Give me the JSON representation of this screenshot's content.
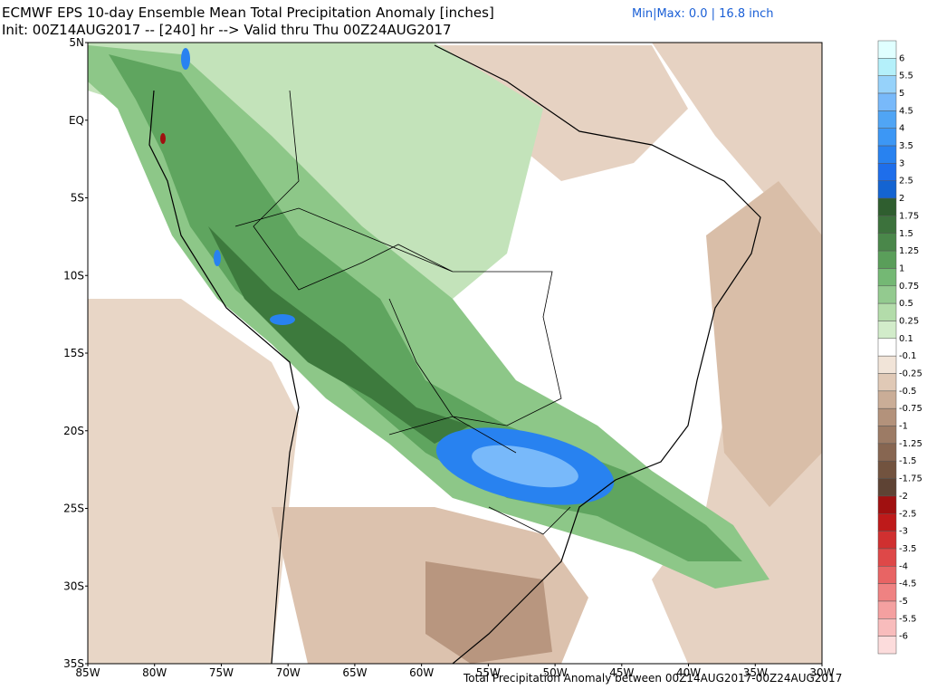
{
  "header": {
    "title": "ECMWF EPS 10-day Ensemble Mean Total Precipitation Anomaly [inches]",
    "minmax": "Min|Max: 0.0 | 16.8 inch",
    "init": "Init: 00Z14AUG2017 -- [240] hr --> Valid thru Thu 00Z24AUG2017"
  },
  "map": {
    "lat_labels": [
      "5N",
      "EQ",
      "5S",
      "10S",
      "15S",
      "20S",
      "25S",
      "30S",
      "35S"
    ],
    "lon_labels": [
      "85W",
      "80W",
      "75W",
      "70W",
      "65W",
      "60W",
      "55W",
      "50W",
      "45W",
      "40W",
      "35W",
      "30W"
    ],
    "caption": "Total Precipitation Anomaly between 00Z14AUG2017-00Z24AUG2017"
  },
  "colorbar": {
    "colors": [
      "#e0ffff",
      "#b4f0fa",
      "#96d2fa",
      "#78b9fa",
      "#50a5f5",
      "#3c97f5",
      "#2882f0",
      "#1e6eeb",
      "#1464d2",
      "#2f5e2f",
      "#3c723c",
      "#4a874a",
      "#5a9e5a",
      "#74b874",
      "#93ca8f",
      "#b3dcaa",
      "#d2ecca",
      "#ffffff",
      "#f1e4d8",
      "#e0c9b6",
      "#caad97",
      "#b3927b",
      "#9c7b65",
      "#876651",
      "#72533f",
      "#5e4334",
      "#a01010",
      "#be1a1a",
      "#d03030",
      "#de4848",
      "#e86464",
      "#ef8282",
      "#f4a0a0",
      "#f8bcbc",
      "#fcdcdc"
    ],
    "labels": [
      "6",
      "5.5",
      "5",
      "4.5",
      "4",
      "3.5",
      "3",
      "2.5",
      "2",
      "1.75",
      "1.5",
      "1.25",
      "1",
      "0.75",
      "0.5",
      "0.25",
      "0.1",
      "-0.1",
      "-0.25",
      "-0.5",
      "-0.75",
      "-1",
      "-1.25",
      "-1.5",
      "-1.75",
      "-2",
      "-2.5",
      "-3",
      "-3.5",
      "-4",
      "-4.5",
      "-5",
      "-5.5",
      "-6"
    ]
  }
}
